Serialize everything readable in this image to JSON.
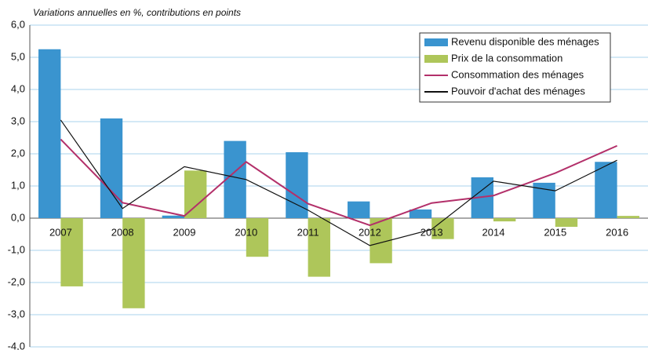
{
  "chart_data": {
    "type": "combo",
    "subtitle": "Variations annuelles en %, contributions en points",
    "categories": [
      "2007",
      "2008",
      "2009",
      "2010",
      "2011",
      "2012",
      "2013",
      "2014",
      "2015",
      "2016"
    ],
    "series": [
      {
        "name": "Revenu disponible des ménages",
        "type": "bar",
        "color": "#3a94cf",
        "values": [
          5.25,
          3.1,
          0.08,
          2.4,
          2.05,
          0.52,
          0.27,
          1.27,
          1.1,
          1.75
        ]
      },
      {
        "name": "Prix de la consommation",
        "type": "bar",
        "color": "#aec65a",
        "values": [
          -2.12,
          -2.8,
          1.48,
          -1.2,
          -1.82,
          -1.4,
          -0.65,
          -0.1,
          -0.27,
          0.07
        ]
      },
      {
        "name": "Consommation des ménages",
        "type": "line",
        "color": "#b3306a",
        "values": [
          2.45,
          0.48,
          0.07,
          1.75,
          0.45,
          -0.22,
          0.47,
          0.7,
          1.4,
          2.25
        ]
      },
      {
        "name": "Pouvoir d'achat des ménages",
        "type": "line",
        "color": "#111111",
        "values": [
          3.05,
          0.3,
          1.6,
          1.2,
          0.25,
          -0.85,
          -0.35,
          1.15,
          0.85,
          1.8
        ]
      }
    ],
    "ylim": [
      -4,
      6
    ],
    "yticks": [
      {
        "value": -4,
        "label": "-4,0"
      },
      {
        "value": -3,
        "label": "-3,0"
      },
      {
        "value": -2,
        "label": "-2,0"
      },
      {
        "value": -1,
        "label": "-1,0"
      },
      {
        "value": 0,
        "label": "0,0"
      },
      {
        "value": 1,
        "label": "1,0"
      },
      {
        "value": 2,
        "label": "2,0"
      },
      {
        "value": 3,
        "label": "3,0"
      },
      {
        "value": 4,
        "label": "4,0"
      },
      {
        "value": 5,
        "label": "5,0"
      },
      {
        "value": 6,
        "label": "6,0"
      }
    ],
    "grid": true,
    "legend": "top-right"
  }
}
